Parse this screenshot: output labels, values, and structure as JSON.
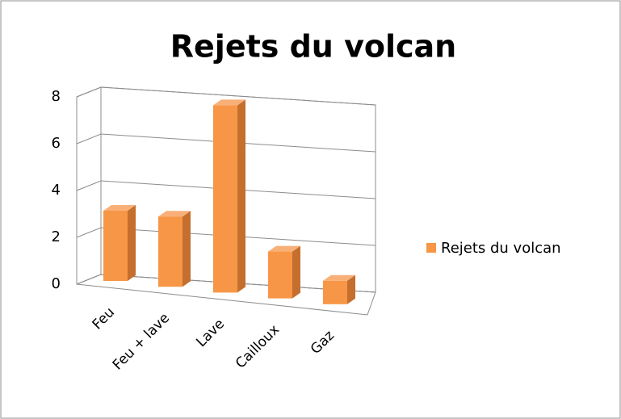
{
  "chart_data": {
    "type": "bar3d",
    "title": "Rejets du volcan",
    "categories": [
      "Feu",
      "Feu + lave",
      "Lave",
      "Cailloux",
      "Gaz"
    ],
    "series": [
      {
        "name": "Rejets du volcan",
        "color": "#f79646",
        "values": [
          3,
          3,
          8,
          2,
          1
        ]
      }
    ],
    "ylim": [
      0,
      8
    ],
    "yticks": [
      0,
      2,
      4,
      6,
      8
    ],
    "grid": true,
    "legend": "right"
  }
}
